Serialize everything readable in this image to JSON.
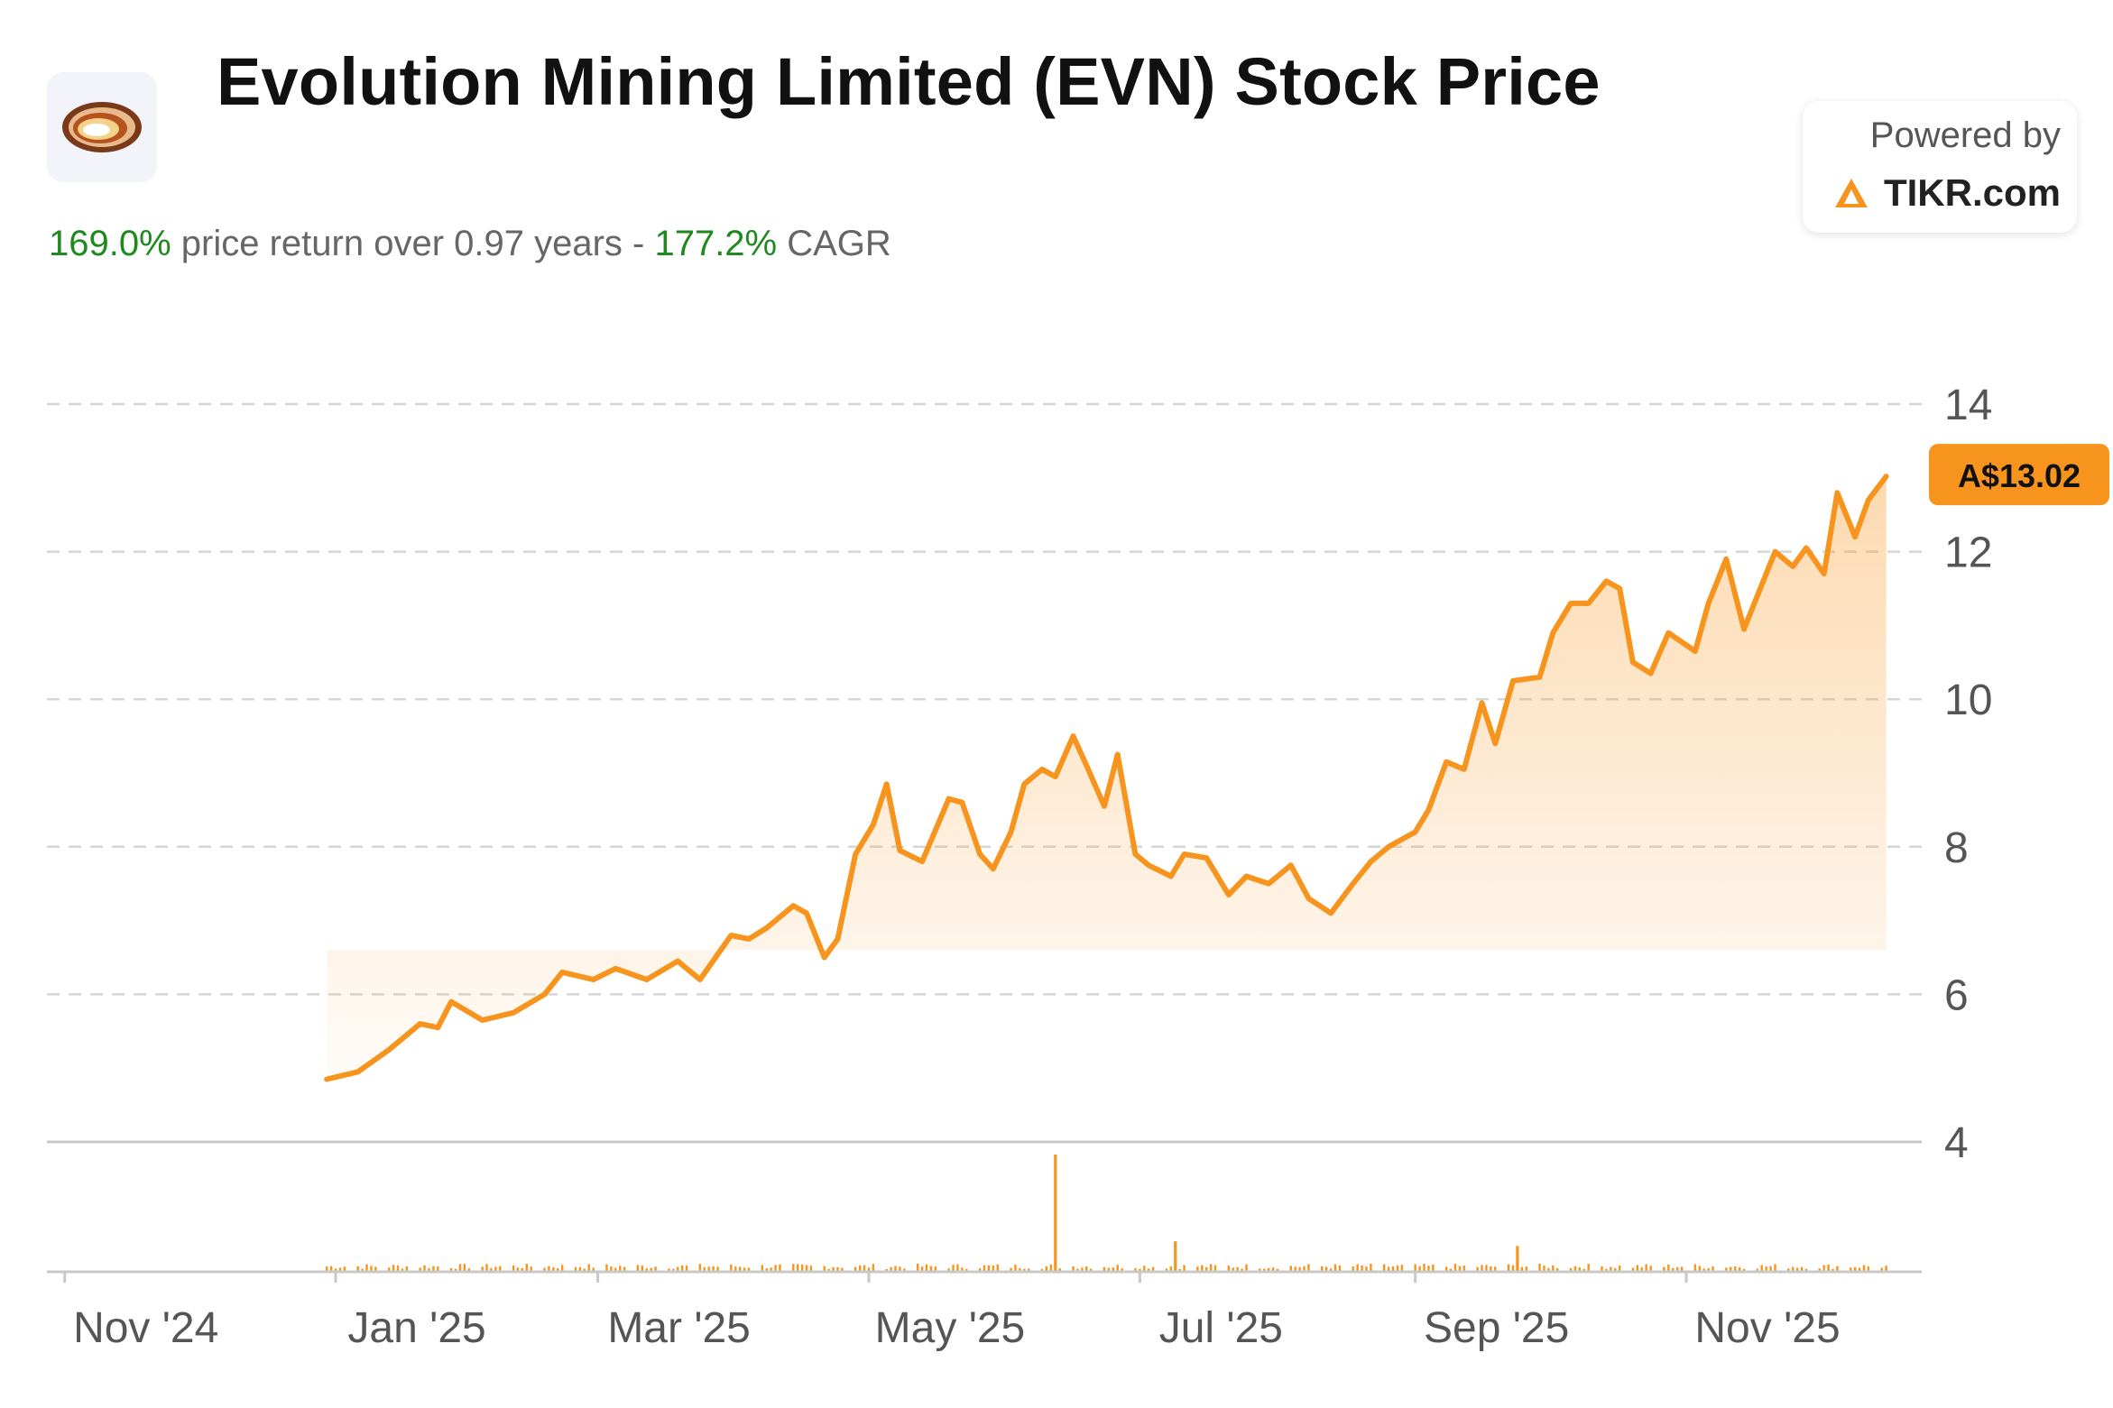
{
  "header": {
    "title": "Evolution Mining Limited (EVN) Stock Price",
    "return_pct": "169.0%",
    "return_text": " price return over 0.97 years - ",
    "cagr_pct": "177.2%",
    "cagr_text": " CAGR"
  },
  "branding": {
    "powered_by": "Powered by",
    "brand_name": "TIKR.com",
    "logo_icon": "evolution-mining-logo-icon",
    "brand_icon": "tikr-triangle-icon"
  },
  "colors": {
    "line": "#f7941d",
    "positive": "#1e8a1e",
    "badge": "#f7941d"
  },
  "chart_data": {
    "type": "line",
    "title": "Evolution Mining Limited (EVN) Stock Price",
    "currency": "A$",
    "last_price_label": "A$13.02",
    "y_axis": {
      "position": "right",
      "ticks": [
        4,
        6,
        8,
        10,
        12,
        14
      ],
      "range": [
        4,
        14
      ]
    },
    "x_axis": {
      "range": [
        "2024-10-28",
        "2025-12-24"
      ],
      "ticks": [
        {
          "label": "Nov '24",
          "date": "2024-11-01"
        },
        {
          "label": "Jan '25",
          "date": "2025-01-01"
        },
        {
          "label": "Mar '25",
          "date": "2025-03-01"
        },
        {
          "label": "May '25",
          "date": "2025-05-01"
        },
        {
          "label": "Jul '25",
          "date": "2025-07-01"
        },
        {
          "label": "Sep '25",
          "date": "2025-09-01"
        },
        {
          "label": "Nov '25",
          "date": "2025-11-01"
        }
      ]
    },
    "grid": "dashed horizontal",
    "series": [
      {
        "points": [
          [
            "2024-12-30",
            4.85
          ],
          [
            "2025-01-06",
            4.95
          ],
          [
            "2025-01-13",
            5.25
          ],
          [
            "2025-01-20",
            5.6
          ],
          [
            "2025-01-24",
            5.55
          ],
          [
            "2025-01-27",
            5.9
          ],
          [
            "2025-02-03",
            5.65
          ],
          [
            "2025-02-10",
            5.75
          ],
          [
            "2025-02-17",
            6.0
          ],
          [
            "2025-02-21",
            6.3
          ],
          [
            "2025-02-28",
            6.2
          ],
          [
            "2025-03-05",
            6.35
          ],
          [
            "2025-03-12",
            6.2
          ],
          [
            "2025-03-19",
            6.45
          ],
          [
            "2025-03-24",
            6.2
          ],
          [
            "2025-03-31",
            6.8
          ],
          [
            "2025-04-04",
            6.75
          ],
          [
            "2025-04-08",
            6.9
          ],
          [
            "2025-04-14",
            7.2
          ],
          [
            "2025-04-17",
            7.1
          ],
          [
            "2025-04-21",
            6.5
          ],
          [
            "2025-04-24",
            6.75
          ],
          [
            "2025-04-28",
            7.9
          ],
          [
            "2025-05-02",
            8.3
          ],
          [
            "2025-05-05",
            8.85
          ],
          [
            "2025-05-08",
            7.95
          ],
          [
            "2025-05-13",
            7.8
          ],
          [
            "2025-05-19",
            8.65
          ],
          [
            "2025-05-22",
            8.6
          ],
          [
            "2025-05-26",
            7.9
          ],
          [
            "2025-05-29",
            7.7
          ],
          [
            "2025-06-02",
            8.2
          ],
          [
            "2025-06-05",
            8.85
          ],
          [
            "2025-06-09",
            9.05
          ],
          [
            "2025-06-12",
            8.95
          ],
          [
            "2025-06-16",
            9.5
          ],
          [
            "2025-06-19",
            9.1
          ],
          [
            "2025-06-23",
            8.55
          ],
          [
            "2025-06-26",
            9.25
          ],
          [
            "2025-06-30",
            7.9
          ],
          [
            "2025-07-03",
            7.75
          ],
          [
            "2025-07-08",
            7.6
          ],
          [
            "2025-07-11",
            7.9
          ],
          [
            "2025-07-16",
            7.85
          ],
          [
            "2025-07-21",
            7.35
          ],
          [
            "2025-07-25",
            7.6
          ],
          [
            "2025-07-30",
            7.5
          ],
          [
            "2025-08-04",
            7.75
          ],
          [
            "2025-08-08",
            7.3
          ],
          [
            "2025-08-13",
            7.1
          ],
          [
            "2025-08-18",
            7.5
          ],
          [
            "2025-08-22",
            7.8
          ],
          [
            "2025-08-26",
            8.0
          ],
          [
            "2025-09-01",
            8.2
          ],
          [
            "2025-09-04",
            8.5
          ],
          [
            "2025-09-08",
            9.15
          ],
          [
            "2025-09-12",
            9.05
          ],
          [
            "2025-09-16",
            9.95
          ],
          [
            "2025-09-19",
            9.4
          ],
          [
            "2025-09-23",
            10.25
          ],
          [
            "2025-09-29",
            10.3
          ],
          [
            "2025-10-02",
            10.9
          ],
          [
            "2025-10-06",
            11.3
          ],
          [
            "2025-10-10",
            11.3
          ],
          [
            "2025-10-14",
            11.6
          ],
          [
            "2025-10-17",
            11.5
          ],
          [
            "2025-10-20",
            10.5
          ],
          [
            "2025-10-24",
            10.35
          ],
          [
            "2025-10-28",
            10.9
          ],
          [
            "2025-11-03",
            10.65
          ],
          [
            "2025-11-06",
            11.3
          ],
          [
            "2025-11-10",
            11.9
          ],
          [
            "2025-11-14",
            10.95
          ],
          [
            "2025-11-18",
            11.55
          ],
          [
            "2025-11-21",
            12.0
          ],
          [
            "2025-11-25",
            11.8
          ],
          [
            "2025-11-28",
            12.05
          ],
          [
            "2025-12-02",
            11.7
          ],
          [
            "2025-12-05",
            12.8
          ],
          [
            "2025-12-09",
            12.2
          ],
          [
            "2025-12-12",
            12.7
          ],
          [
            "2025-12-16",
            13.02
          ]
        ]
      }
    ],
    "volume": {
      "baseline_level": "low",
      "spikes": [
        {
          "date": "2025-06-12",
          "relative": 1.0
        },
        {
          "date": "2025-07-09",
          "relative": 0.26
        },
        {
          "date": "2025-09-24",
          "relative": 0.22
        }
      ]
    }
  }
}
